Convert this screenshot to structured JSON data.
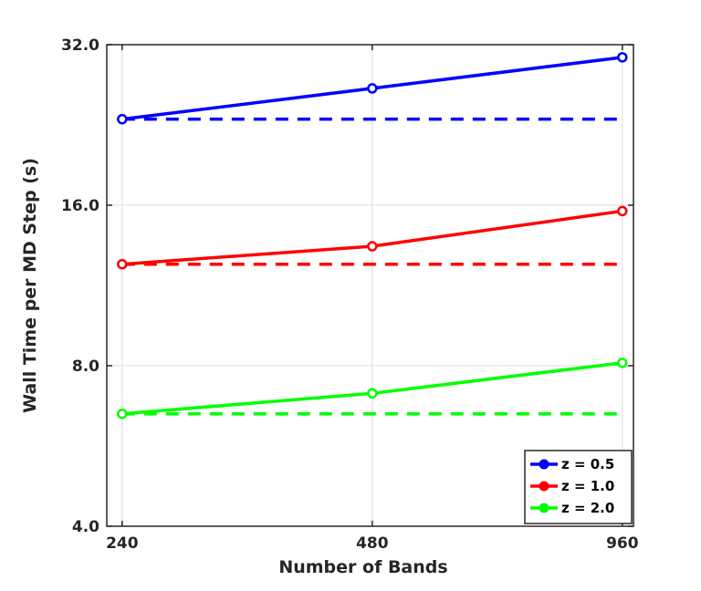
{
  "chart_data": {
    "type": "line",
    "xlabel": "Number of Bands",
    "ylabel": "Wall Time per MD Step (s)",
    "x": [
      240,
      480,
      960
    ],
    "x_tick_labels": [
      "240",
      "480",
      "960"
    ],
    "y_ticks": [
      4.0,
      8.0,
      16.0,
      32.0
    ],
    "y_tick_labels": [
      "4.0",
      "8.0",
      "16.0",
      "32.0"
    ],
    "xlim": [
      230,
      990
    ],
    "ylim": [
      4.0,
      32.0
    ],
    "x_scale": "log2",
    "y_scale": "log2",
    "grid": true,
    "legend_position": "bottom-right",
    "series": [
      {
        "name": "z = 0.5",
        "color": "#0000ff",
        "values": [
          23.2,
          26.5,
          30.3
        ],
        "reference_value": 23.2
      },
      {
        "name": "z = 1.0",
        "color": "#ff0000",
        "values": [
          12.4,
          13.4,
          15.6
        ],
        "reference_value": 12.4
      },
      {
        "name": "z = 2.0",
        "color": "#00ff00",
        "values": [
          6.5,
          7.1,
          8.1
        ],
        "reference_value": 6.5
      }
    ]
  }
}
